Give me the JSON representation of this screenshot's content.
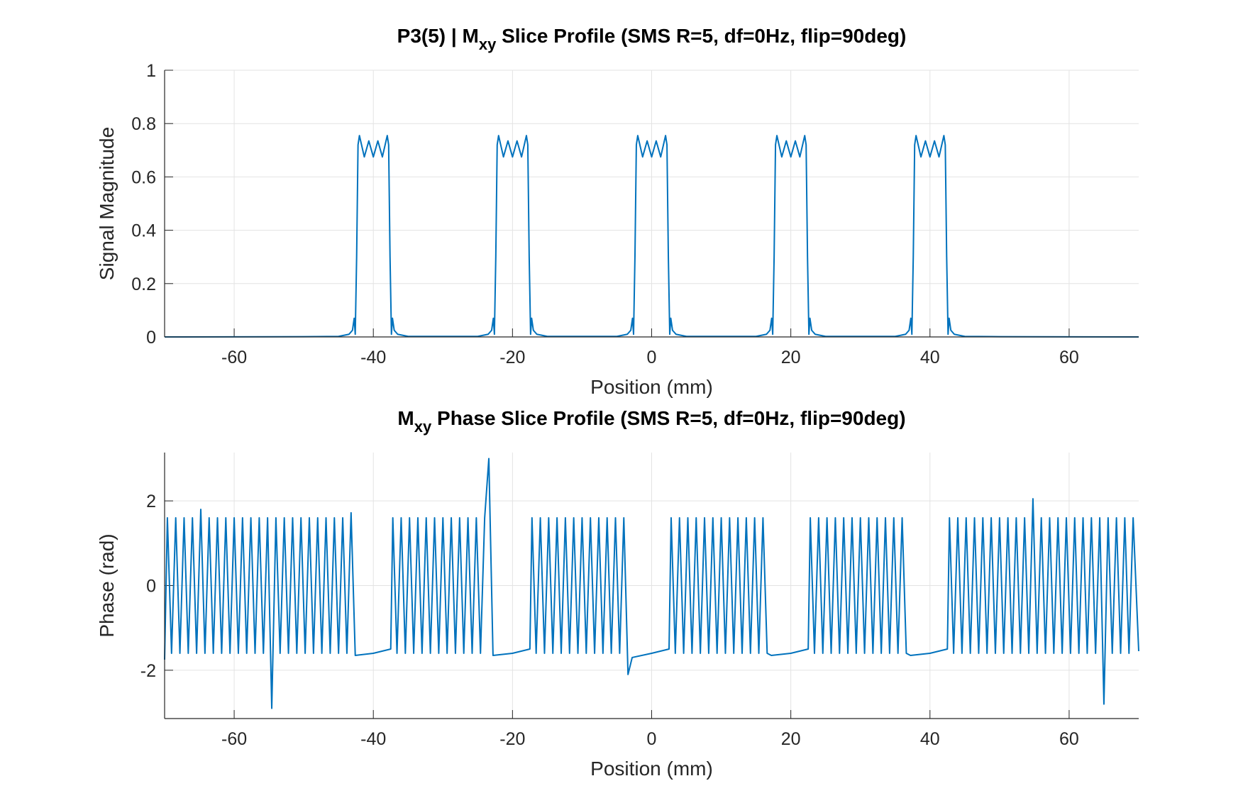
{
  "chart_data": [
    {
      "type": "line",
      "title": [
        "P3(5) | M",
        "xy",
        " Slice Profile (SMS R=5, df=0Hz, flip=90deg)"
      ],
      "xlabel": "Position (mm)",
      "ylabel": "Signal Magnitude",
      "xlim": [
        -70,
        70
      ],
      "ylim": [
        0,
        1
      ],
      "xticks": [
        -60,
        -40,
        -20,
        0,
        20,
        40,
        60
      ],
      "yticks": [
        0,
        0.2,
        0.4,
        0.6,
        0.8,
        1
      ],
      "grid": true,
      "color": "#0072bd",
      "x": [
        -70,
        -50,
        -45,
        -43.5,
        -43,
        -42.75,
        -42.6,
        -42.4,
        -42.2,
        -42,
        -41.3,
        -40.65,
        -40,
        -39.35,
        -38.7,
        -38,
        -37.8,
        -37.6,
        -37.4,
        -37.25,
        -37,
        -36.5,
        -35,
        -25,
        -23.5,
        -23,
        -22.75,
        -22.6,
        -22.4,
        -22.2,
        -22,
        -21.3,
        -20.65,
        -20,
        -19.35,
        -18.7,
        -18,
        -17.8,
        -17.6,
        -17.4,
        -17.25,
        -17,
        -16.5,
        -15,
        -5,
        -3.5,
        -3,
        -2.75,
        -2.6,
        -2.4,
        -2.2,
        -2,
        -1.3,
        -0.65,
        0,
        0.65,
        1.3,
        2,
        2.2,
        2.4,
        2.6,
        2.75,
        3,
        3.5,
        5,
        15,
        16.5,
        17,
        17.25,
        17.4,
        17.6,
        17.8,
        18,
        18.7,
        19.35,
        20,
        20.65,
        21.3,
        22,
        22.2,
        22.4,
        22.6,
        22.75,
        23,
        23.5,
        25,
        35,
        36.5,
        37,
        37.25,
        37.4,
        37.6,
        37.8,
        38,
        38.7,
        39.35,
        40,
        40.65,
        41.3,
        42,
        42.2,
        42.4,
        42.6,
        42.75,
        43,
        43.5,
        45,
        50,
        70
      ],
      "values": [
        0,
        0.001,
        0.002,
        0.01,
        0.025,
        0.07,
        0.01,
        0.3,
        0.72,
        0.755,
        0.675,
        0.735,
        0.675,
        0.735,
        0.675,
        0.755,
        0.72,
        0.3,
        0.01,
        0.07,
        0.025,
        0.01,
        0.002,
        0.002,
        0.01,
        0.025,
        0.07,
        0.01,
        0.3,
        0.72,
        0.755,
        0.675,
        0.735,
        0.675,
        0.735,
        0.675,
        0.755,
        0.72,
        0.3,
        0.01,
        0.07,
        0.025,
        0.01,
        0.002,
        0.002,
        0.01,
        0.025,
        0.07,
        0.01,
        0.3,
        0.72,
        0.755,
        0.675,
        0.735,
        0.675,
        0.735,
        0.675,
        0.755,
        0.72,
        0.3,
        0.01,
        0.07,
        0.025,
        0.01,
        0.002,
        0.002,
        0.01,
        0.025,
        0.07,
        0.01,
        0.3,
        0.72,
        0.755,
        0.675,
        0.735,
        0.675,
        0.735,
        0.675,
        0.755,
        0.72,
        0.3,
        0.01,
        0.07,
        0.025,
        0.01,
        0.002,
        0.002,
        0.01,
        0.025,
        0.07,
        0.01,
        0.3,
        0.72,
        0.755,
        0.675,
        0.735,
        0.675,
        0.735,
        0.675,
        0.755,
        0.72,
        0.3,
        0.01,
        0.07,
        0.025,
        0.01,
        0.002,
        0.001,
        0
      ]
    },
    {
      "type": "line",
      "title": [
        "M",
        "xy",
        " Phase Slice Profile (SMS R=5, df=0Hz, flip=90deg)"
      ],
      "xlabel": "Position (mm)",
      "ylabel": "Phase (rad)",
      "xlim": [
        -70,
        70
      ],
      "ylim": [
        -3.1416,
        3.1416
      ],
      "xticks": [
        -60,
        -40,
        -20,
        0,
        20,
        40,
        60
      ],
      "yticks": [
        -2,
        0,
        2
      ],
      "grid": true,
      "color": "#0072bd",
      "x": [
        -70,
        -69.6,
        -69.0,
        -68.4,
        -67.8,
        -67.2,
        -66.6,
        -66.0,
        -65.4,
        -64.8,
        -64.2,
        -63.6,
        -63.0,
        -62.4,
        -61.8,
        -61.2,
        -60.6,
        -60.0,
        -59.4,
        -58.8,
        -58.2,
        -57.6,
        -57.0,
        -56.4,
        -55.8,
        -55.2,
        -54.6,
        -54.0,
        -53.4,
        -52.8,
        -52.2,
        -51.6,
        -51.0,
        -50.4,
        -49.8,
        -49.2,
        -48.6,
        -48.0,
        -47.4,
        -46.8,
        -46.2,
        -45.6,
        -45.0,
        -44.4,
        -43.8,
        -43.2,
        -42.6,
        -40,
        -37.5,
        -37.2,
        -36.6,
        -36.0,
        -35.4,
        -34.8,
        -34.2,
        -33.6,
        -33.0,
        -32.4,
        -31.8,
        -31.2,
        -30.6,
        -30.0,
        -29.4,
        -28.8,
        -28.2,
        -27.6,
        -27.0,
        -26.4,
        -25.8,
        -25.2,
        -24.6,
        -24.0,
        -23.4,
        -22.8,
        -20,
        -17.5,
        -17.2,
        -16.6,
        -16.0,
        -15.4,
        -14.8,
        -14.2,
        -13.6,
        -13.0,
        -12.4,
        -11.8,
        -11.2,
        -10.6,
        -10.0,
        -9.4,
        -8.8,
        -8.2,
        -7.6,
        -7.0,
        -6.4,
        -5.8,
        -5.2,
        -4.6,
        -4.0,
        -3.4,
        -2.8,
        0,
        2.5,
        2.8,
        3.4,
        4.0,
        4.6,
        5.2,
        5.8,
        6.4,
        7.0,
        7.6,
        8.2,
        8.8,
        9.4,
        10.0,
        10.6,
        11.2,
        11.8,
        12.4,
        13.0,
        13.6,
        14.2,
        14.8,
        15.4,
        16.0,
        16.6,
        17.2,
        20,
        22.5,
        22.8,
        23.4,
        24.0,
        24.6,
        25.2,
        25.8,
        26.4,
        27.0,
        27.6,
        28.2,
        28.8,
        29.4,
        30.0,
        30.6,
        31.2,
        31.8,
        32.4,
        33.0,
        33.6,
        34.2,
        34.8,
        35.4,
        36.0,
        36.6,
        37.2,
        40,
        42.5,
        42.8,
        43.4,
        44.0,
        44.6,
        45.2,
        45.8,
        46.4,
        47.0,
        47.6,
        48.2,
        48.8,
        49.4,
        50.0,
        50.6,
        51.2,
        51.8,
        52.4,
        53.0,
        53.6,
        54.2,
        54.8,
        55.4,
        56.0,
        56.6,
        57.2,
        57.8,
        58.4,
        59.0,
        59.6,
        60.2,
        60.8,
        61.4,
        62.0,
        62.6,
        63.2,
        63.8,
        64.4,
        65.0,
        65.6,
        66.2,
        66.8,
        67.4,
        68.0,
        68.6,
        69.2,
        70
      ],
      "values": [
        -1.75,
        1.6,
        -1.6,
        1.6,
        -1.6,
        1.6,
        -1.6,
        1.6,
        -1.6,
        1.8,
        -1.6,
        1.6,
        -1.6,
        1.6,
        -1.6,
        1.6,
        -1.6,
        1.6,
        -1.6,
        1.6,
        -1.6,
        1.6,
        -1.6,
        1.6,
        -1.6,
        1.6,
        -2.9,
        1.6,
        -1.6,
        1.6,
        -1.6,
        1.6,
        -1.6,
        1.6,
        -1.6,
        1.6,
        -1.6,
        1.6,
        -1.6,
        1.6,
        -1.6,
        1.6,
        -1.6,
        1.6,
        -1.6,
        1.72,
        -1.65,
        -1.6,
        -1.5,
        1.6,
        -1.6,
        1.6,
        -1.6,
        1.6,
        -1.6,
        1.6,
        -1.6,
        1.6,
        -1.6,
        1.6,
        -1.6,
        1.6,
        -1.6,
        1.6,
        -1.6,
        1.6,
        -1.6,
        1.6,
        -1.6,
        1.6,
        -1.6,
        1.6,
        3.0,
        -1.65,
        -1.6,
        -1.5,
        1.6,
        -1.6,
        1.6,
        -1.6,
        1.6,
        -1.6,
        1.6,
        -1.6,
        1.6,
        -1.6,
        1.6,
        -1.6,
        1.6,
        -1.6,
        1.6,
        -1.6,
        1.6,
        -1.6,
        1.6,
        -1.6,
        1.6,
        -1.6,
        1.6,
        -2.1,
        -1.7,
        -1.6,
        -1.5,
        1.6,
        -1.6,
        1.6,
        -1.6,
        1.6,
        -1.6,
        1.6,
        -1.6,
        1.6,
        -1.6,
        1.6,
        -1.6,
        1.6,
        -1.6,
        1.6,
        -1.6,
        1.6,
        -1.6,
        1.6,
        -1.6,
        1.6,
        -1.6,
        1.6,
        -1.6,
        -1.65,
        -1.6,
        -1.5,
        1.6,
        -1.6,
        1.6,
        -1.6,
        1.6,
        -1.6,
        1.6,
        -1.6,
        1.6,
        -1.6,
        1.6,
        -1.6,
        1.6,
        -1.6,
        1.6,
        -1.6,
        1.6,
        -1.6,
        1.6,
        -1.6,
        1.6,
        -1.6,
        1.6,
        -1.6,
        -1.65,
        -1.6,
        -1.5,
        1.6,
        -1.6,
        1.6,
        -1.6,
        1.6,
        -1.6,
        1.6,
        -1.6,
        1.6,
        -1.6,
        1.6,
        -1.6,
        1.6,
        -1.6,
        1.6,
        -1.6,
        1.6,
        -1.6,
        1.6,
        -1.6,
        2.05,
        -1.6,
        1.6,
        -1.6,
        1.6,
        -1.6,
        1.6,
        -1.6,
        1.6,
        -1.6,
        1.6,
        -1.6,
        1.6,
        -1.6,
        1.6,
        -1.6,
        1.6,
        -2.8,
        1.6,
        -1.6,
        1.6,
        -1.6,
        1.6,
        -1.6,
        1.6,
        -1.55
      ]
    }
  ]
}
